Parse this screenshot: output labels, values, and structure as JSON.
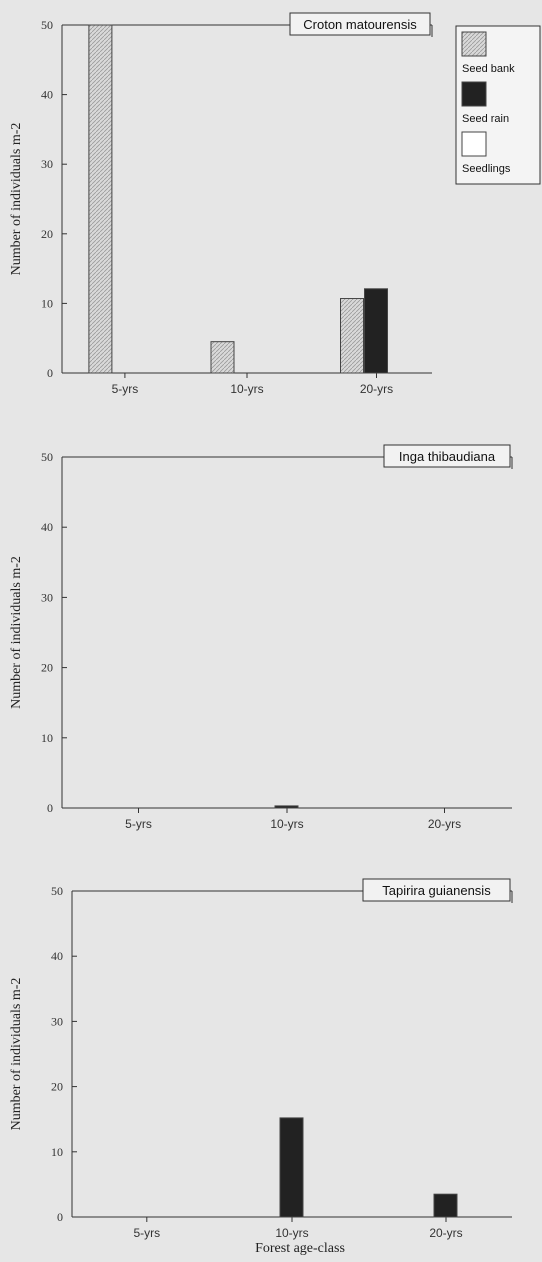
{
  "legend": {
    "entries": [
      {
        "label": "Seed bank",
        "fill": "hatch"
      },
      {
        "label": "Seed rain",
        "fill": "#222222"
      },
      {
        "label": "Seedlings",
        "fill": "#ffffff"
      }
    ]
  },
  "colors": {
    "background": "#e6e6e6",
    "seed_rain": "#222222",
    "seedlings": "#ffffff",
    "hatch_light": "#d9d9d9",
    "hatch_dark": "#9a9a9a",
    "axis": "#333333"
  },
  "xlabel": "Forest age-class",
  "chart_data": [
    {
      "type": "bar",
      "title": "Croton matourensis",
      "categories": [
        "5-yrs",
        "10-yrs",
        "20-yrs"
      ],
      "ylabel": "Number of individuals  m-2",
      "ylim": [
        0,
        50
      ],
      "yticks": [
        0,
        10,
        20,
        30,
        40,
        50
      ],
      "series": [
        {
          "name": "Seed bank",
          "values": [
            50,
            4.5,
            10.7
          ]
        },
        {
          "name": "Seed rain",
          "values": [
            0,
            0,
            12.1
          ]
        },
        {
          "name": "Seedlings",
          "values": [
            0,
            0,
            0
          ]
        }
      ]
    },
    {
      "type": "bar",
      "title": "Inga thibaudiana",
      "categories": [
        "5-yrs",
        "10-yrs",
        "20-yrs"
      ],
      "ylabel": "Number of individuals  m-2",
      "ylim": [
        0,
        50
      ],
      "yticks": [
        0,
        10,
        20,
        30,
        40,
        50
      ],
      "series": [
        {
          "name": "Seed bank",
          "values": [
            0,
            0,
            0
          ]
        },
        {
          "name": "Seed rain",
          "values": [
            0,
            0.3,
            0
          ]
        },
        {
          "name": "Seedlings",
          "values": [
            0,
            0,
            0
          ]
        }
      ]
    },
    {
      "type": "bar",
      "title": "Tapirira guianensis",
      "categories": [
        "5-yrs",
        "10-yrs",
        "20-yrs"
      ],
      "ylabel": "Number of individuals  m-2",
      "ylim": [
        0,
        50
      ],
      "yticks": [
        0,
        10,
        20,
        30,
        40,
        50
      ],
      "series": [
        {
          "name": "Seed bank",
          "values": [
            0,
            0,
            0
          ]
        },
        {
          "name": "Seed rain",
          "values": [
            0,
            15.2,
            3.5
          ]
        },
        {
          "name": "Seedlings",
          "values": [
            0,
            0,
            0
          ]
        }
      ]
    }
  ]
}
